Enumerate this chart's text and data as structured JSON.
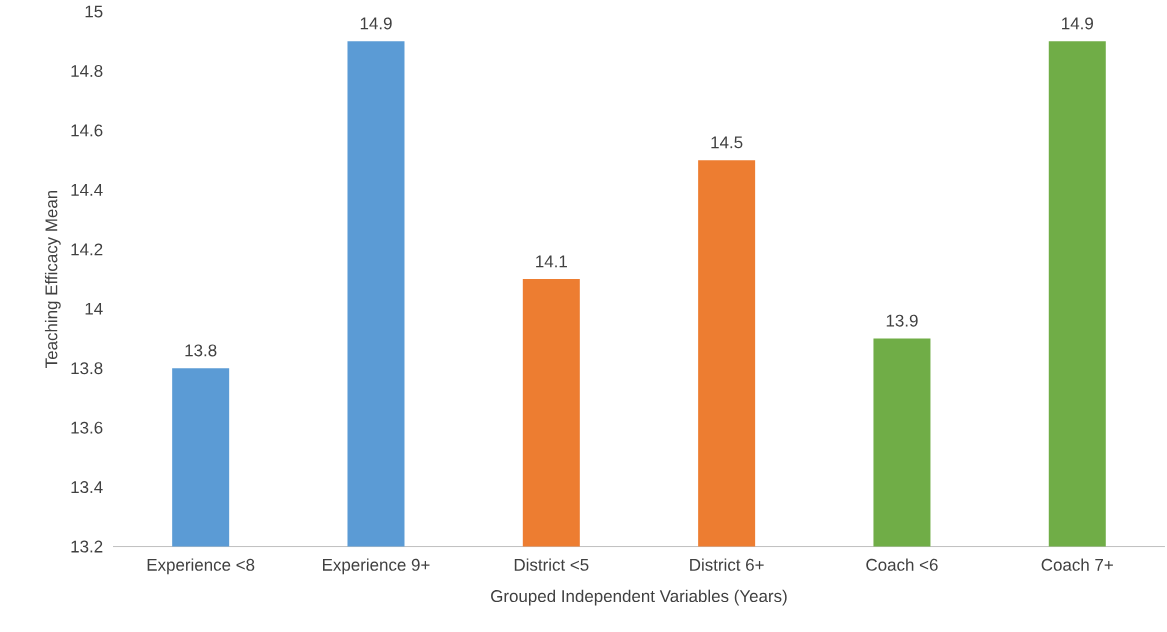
{
  "chart_data": {
    "type": "bar",
    "xlabel": "Grouped Independent Variables (Years)",
    "ylabel": "Teaching Efficacy Mean",
    "categories": [
      "Experience <8",
      "Experience 9+",
      "District <5",
      "District 6+",
      "Coach <6",
      "Coach 7+"
    ],
    "values": [
      13.8,
      14.9,
      14.1,
      14.5,
      13.9,
      14.9
    ],
    "colors": [
      "#5b9bd5",
      "#5b9bd5",
      "#ed7d31",
      "#ed7d31",
      "#70ad47",
      "#70ad47"
    ],
    "ylim": [
      13.2,
      15
    ],
    "yticks": [
      13.2,
      13.4,
      13.6,
      13.8,
      14,
      14.2,
      14.4,
      14.6,
      14.8,
      15
    ],
    "data_labels": true,
    "grid": false
  }
}
